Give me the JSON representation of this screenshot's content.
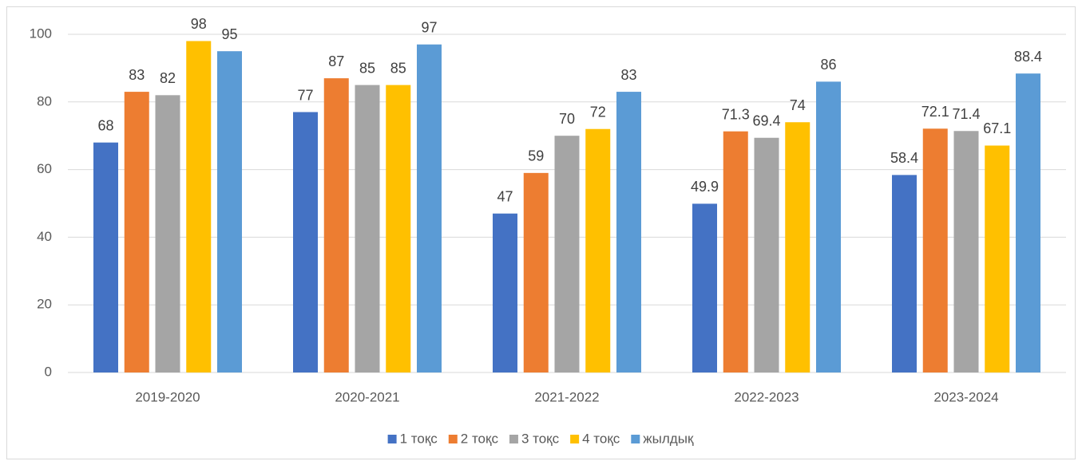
{
  "chart_data": {
    "type": "bar",
    "categories": [
      "2019-2020",
      "2020-2021",
      "2021-2022",
      "2022-2023",
      "2023-2024"
    ],
    "series": [
      {
        "name": "1 тоқс",
        "color": "#4472c4",
        "values": [
          68,
          77,
          47,
          49.9,
          58.4
        ]
      },
      {
        "name": "2 тоқс",
        "color": "#ed7d31",
        "values": [
          83,
          87,
          59,
          71.3,
          72.1
        ]
      },
      {
        "name": "3 тоқс",
        "color": "#a5a5a5",
        "values": [
          82,
          85,
          70,
          69.4,
          71.4
        ]
      },
      {
        "name": "4 тоқс",
        "color": "#ffc000",
        "values": [
          98,
          85,
          72,
          74,
          67.1
        ]
      },
      {
        "name": "жылдық",
        "color": "#5b9bd5",
        "values": [
          95,
          97,
          83,
          86,
          88.4
        ]
      }
    ],
    "ylim": [
      0,
      100
    ],
    "yticks": [
      0,
      20,
      40,
      60,
      80,
      100
    ],
    "grid": true,
    "legend": "bottom"
  }
}
